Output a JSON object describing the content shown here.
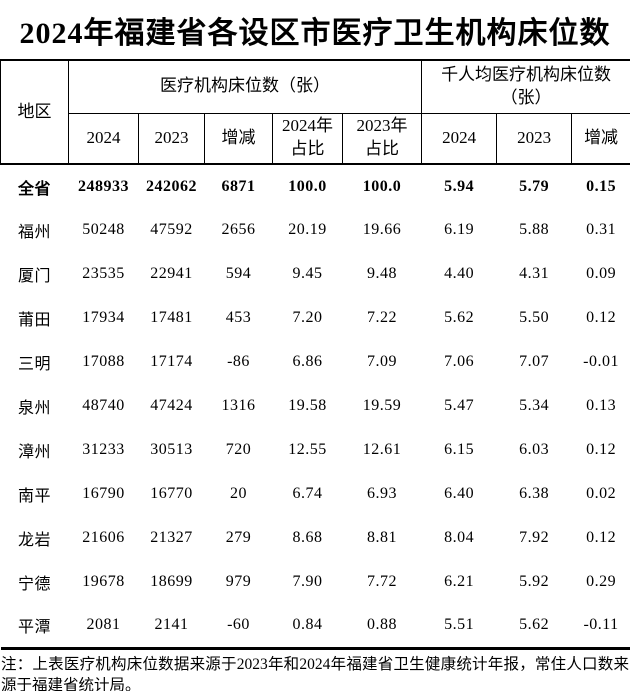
{
  "title": "2024年福建省各设区市医疗卫生机构床位数",
  "table": {
    "corner_header": "地区",
    "groups": [
      {
        "label": "医疗机构床位数（张）",
        "subcols": [
          "2024",
          "2023",
          "增减",
          "2024年\n占比",
          "2023年\n占比"
        ]
      },
      {
        "label": "千人均医疗机构床位数\n（张）",
        "subcols": [
          "2024",
          "2023",
          "增减"
        ]
      }
    ],
    "rows": [
      {
        "region": "全省",
        "bold": true,
        "values": [
          "248933",
          "242062",
          "6871",
          "100.0",
          "100.0",
          "5.94",
          "5.79",
          "0.15"
        ]
      },
      {
        "region": "福州",
        "bold": false,
        "values": [
          "50248",
          "47592",
          "2656",
          "20.19",
          "19.66",
          "6.19",
          "5.88",
          "0.31"
        ]
      },
      {
        "region": "厦门",
        "bold": false,
        "values": [
          "23535",
          "22941",
          "594",
          "9.45",
          "9.48",
          "4.40",
          "4.31",
          "0.09"
        ]
      },
      {
        "region": "莆田",
        "bold": false,
        "values": [
          "17934",
          "17481",
          "453",
          "7.20",
          "7.22",
          "5.62",
          "5.50",
          "0.12"
        ]
      },
      {
        "region": "三明",
        "bold": false,
        "values": [
          "17088",
          "17174",
          "-86",
          "6.86",
          "7.09",
          "7.06",
          "7.07",
          "-0.01"
        ]
      },
      {
        "region": "泉州",
        "bold": false,
        "values": [
          "48740",
          "47424",
          "1316",
          "19.58",
          "19.59",
          "5.47",
          "5.34",
          "0.13"
        ]
      },
      {
        "region": "漳州",
        "bold": false,
        "values": [
          "31233",
          "30513",
          "720",
          "12.55",
          "12.61",
          "6.15",
          "6.03",
          "0.12"
        ]
      },
      {
        "region": "南平",
        "bold": false,
        "values": [
          "16790",
          "16770",
          "20",
          "6.74",
          "6.93",
          "6.40",
          "6.38",
          "0.02"
        ]
      },
      {
        "region": "龙岩",
        "bold": false,
        "values": [
          "21606",
          "21327",
          "279",
          "8.68",
          "8.81",
          "8.04",
          "7.92",
          "0.12"
        ]
      },
      {
        "region": "宁德",
        "bold": false,
        "values": [
          "19678",
          "18699",
          "979",
          "7.90",
          "7.72",
          "6.21",
          "5.92",
          "0.29"
        ]
      },
      {
        "region": "平潭",
        "bold": false,
        "values": [
          "2081",
          "2141",
          "-60",
          "0.84",
          "0.88",
          "5.51",
          "5.62",
          "-0.11"
        ]
      }
    ]
  },
  "note": "注：上表医疗机构床位数据来源于2023年和2024年福建省卫生健康统计年报，常住人口数来源于福建省统计局。",
  "colors": {
    "text": "#000000",
    "background": "#ffffff",
    "border": "#000000"
  }
}
